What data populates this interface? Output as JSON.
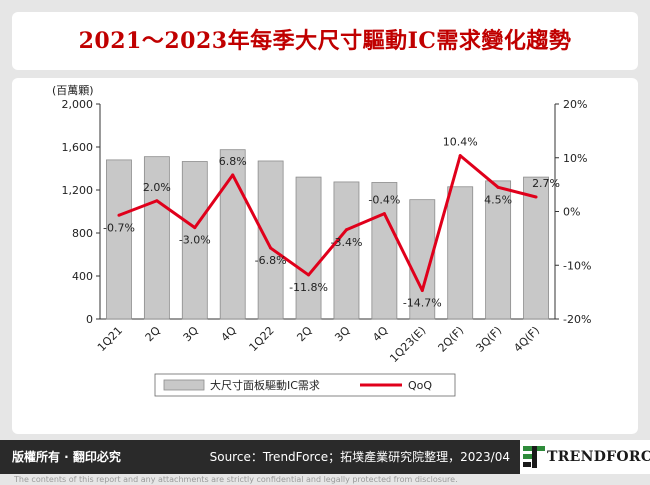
{
  "header": {
    "title": "2021～2023年每季大尺寸驅動IC需求變化趨勢"
  },
  "footer": {
    "copyright": "版權所有 · 翻印必究",
    "source": "Source：TrendForce；拓墣產業研究院整理，2023/04",
    "brand": "TRENDFORCE",
    "disclaimer": "The contents of this report and any attachments are strictly confidential and legally protected from disclosure."
  },
  "colors": {
    "title": "#c00000",
    "bar_fill": "#c8c8c8",
    "bar_edge": "#8c8c8c",
    "line": "#e0001b",
    "footer_bg": "#2a2a2a",
    "logo_green": "#2e8b3a"
  },
  "chart_data": {
    "type": "bar",
    "unit_label": "(百萬顆)",
    "categories": [
      "1Q21",
      "2Q",
      "3Q",
      "4Q",
      "1Q22",
      "2Q",
      "3Q",
      "4Q",
      "1Q23(E)",
      "2Q(F)",
      "3Q(F)",
      "4Q(F)"
    ],
    "y_left": {
      "min": 0,
      "max": 2000,
      "ticks": [
        "0",
        "400",
        "800",
        "1,200",
        "1,600",
        "2,000"
      ]
    },
    "y_right": {
      "min": -20,
      "max": 20,
      "ticks": [
        "-20%",
        "-10%",
        "0%",
        "10%",
        "20%"
      ]
    },
    "grid": false,
    "legend_position": "bottom",
    "series": [
      {
        "name": "大尺寸面板驅動IC需求",
        "type": "bar",
        "axis": "left",
        "values": [
          1480,
          1510,
          1465,
          1575,
          1470,
          1320,
          1275,
          1270,
          1110,
          1230,
          1285,
          1320
        ]
      },
      {
        "name": "QoQ",
        "type": "line",
        "axis": "right",
        "values": [
          -0.7,
          2.0,
          -3.0,
          6.8,
          -6.8,
          -11.8,
          -3.4,
          -0.4,
          -14.7,
          10.4,
          4.5,
          2.7
        ],
        "labels": [
          "-0.7%",
          "2.0%",
          "-3.0%",
          "6.8%",
          "-6.8%",
          "-11.8%",
          "-3.4%",
          "-0.4%",
          "-14.7%",
          "10.4%",
          "4.5%",
          "2.7%"
        ]
      }
    ]
  }
}
